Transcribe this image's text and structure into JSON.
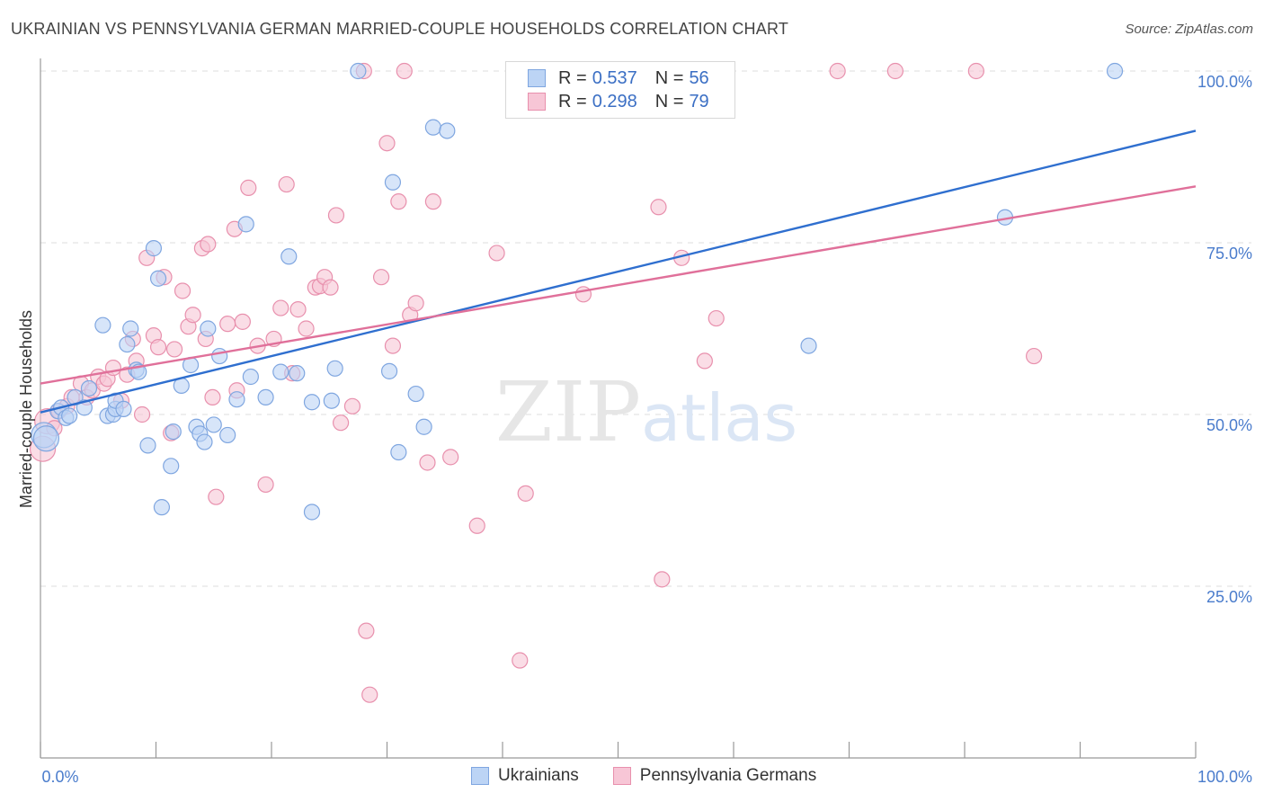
{
  "title": "UKRAINIAN VS PENNSYLVANIA GERMAN MARRIED-COUPLE HOUSEHOLDS CORRELATION CHART",
  "source": "Source: ZipAtlas.com",
  "watermark": {
    "zip": "ZIP",
    "atlas": "atlas"
  },
  "legend": {
    "rows": [
      {
        "r_label": "R =",
        "r": "0.537",
        "n_label": "N =",
        "n": "56"
      },
      {
        "r_label": "R =",
        "r": "0.298",
        "n_label": "N =",
        "n": "79"
      }
    ]
  },
  "colors": {
    "blue_fill": "#bcd4f5",
    "blue_stroke": "#7fa6e0",
    "blue_line": "#2f6fcf",
    "pink_fill": "#f7c6d6",
    "pink_stroke": "#e890ad",
    "pink_line": "#e0709a",
    "tick": "#4a7ccc",
    "grid": "#dddddd"
  },
  "chart_data": {
    "type": "scatter",
    "title": "UKRAINIAN VS PENNSYLVANIA GERMAN MARRIED-COUPLE HOUSEHOLDS CORRELATION CHART",
    "xlabel": "",
    "ylabel": "Married-couple Households",
    "xlim": [
      0,
      100
    ],
    "ylim": [
      0,
      104
    ],
    "x_tick_labels": [
      "0.0%",
      "100.0%"
    ],
    "y_ticks": [
      25,
      50,
      75,
      100
    ],
    "y_tick_labels": [
      "25.0%",
      "50.0%",
      "75.0%",
      "100.0%"
    ],
    "grid": true,
    "legend_position": "top-center",
    "series": [
      {
        "name": "Ukrainians",
        "r": 0.537,
        "n": 56,
        "trend": [
          [
            0,
            50.3
          ],
          [
            100,
            91.3
          ]
        ],
        "points": [
          [
            0.3,
            47.0
          ],
          [
            0.5,
            46.5
          ],
          [
            1.5,
            50.5
          ],
          [
            1.8,
            51.0
          ],
          [
            2.2,
            49.5
          ],
          [
            2.5,
            49.8
          ],
          [
            3.0,
            52.5
          ],
          [
            4.2,
            53.8
          ],
          [
            3.8,
            51.0
          ],
          [
            5.8,
            49.8
          ],
          [
            5.4,
            63.0
          ],
          [
            6.3,
            50.0
          ],
          [
            6.5,
            50.8
          ],
          [
            6.5,
            52.0
          ],
          [
            7.2,
            50.8
          ],
          [
            7.5,
            60.2
          ],
          [
            7.8,
            62.5
          ],
          [
            8.3,
            56.5
          ],
          [
            8.5,
            56.2
          ],
          [
            9.3,
            45.5
          ],
          [
            9.8,
            74.2
          ],
          [
            10.2,
            69.8
          ],
          [
            10.5,
            36.5
          ],
          [
            11.3,
            42.5
          ],
          [
            11.5,
            47.5
          ],
          [
            12.2,
            54.2
          ],
          [
            13.0,
            57.2
          ],
          [
            13.5,
            48.2
          ],
          [
            13.8,
            47.2
          ],
          [
            14.2,
            46.0
          ],
          [
            14.5,
            62.5
          ],
          [
            15.0,
            48.5
          ],
          [
            15.5,
            58.5
          ],
          [
            16.2,
            47.0
          ],
          [
            17.0,
            52.2
          ],
          [
            17.8,
            77.7
          ],
          [
            18.2,
            55.5
          ],
          [
            19.5,
            52.5
          ],
          [
            20.8,
            56.2
          ],
          [
            21.5,
            73.0
          ],
          [
            22.2,
            56.0
          ],
          [
            23.5,
            35.8
          ],
          [
            23.5,
            51.8
          ],
          [
            25.2,
            52.0
          ],
          [
            25.5,
            56.7
          ],
          [
            27.5,
            100.0
          ],
          [
            30.2,
            56.3
          ],
          [
            30.5,
            83.8
          ],
          [
            31.0,
            44.5
          ],
          [
            32.5,
            53.0
          ],
          [
            33.2,
            48.2
          ],
          [
            34.0,
            91.8
          ],
          [
            35.2,
            91.3
          ],
          [
            66.5,
            60.0
          ],
          [
            83.5,
            78.7
          ],
          [
            93.0,
            100.0
          ]
        ]
      },
      {
        "name": "Pennsylvania Germans",
        "r": 0.298,
        "n": 79,
        "trend": [
          [
            0,
            54.5
          ],
          [
            100,
            83.2
          ]
        ],
        "points": [
          [
            0.2,
            45.0
          ],
          [
            0.6,
            49.0
          ],
          [
            1.2,
            48.0
          ],
          [
            1.6,
            50.5
          ],
          [
            2.3,
            51.2
          ],
          [
            2.7,
            52.5
          ],
          [
            3.5,
            54.5
          ],
          [
            4.0,
            52.5
          ],
          [
            4.5,
            53.5
          ],
          [
            5.0,
            55.5
          ],
          [
            5.5,
            54.5
          ],
          [
            5.8,
            55.2
          ],
          [
            6.3,
            56.8
          ],
          [
            7.0,
            52.0
          ],
          [
            7.5,
            55.8
          ],
          [
            8.0,
            61.0
          ],
          [
            8.3,
            57.8
          ],
          [
            8.8,
            50.0
          ],
          [
            9.2,
            72.8
          ],
          [
            9.8,
            61.5
          ],
          [
            10.2,
            59.8
          ],
          [
            10.7,
            70.0
          ],
          [
            11.3,
            47.3
          ],
          [
            11.6,
            59.5
          ],
          [
            12.3,
            68.0
          ],
          [
            12.8,
            62.8
          ],
          [
            13.2,
            64.5
          ],
          [
            14.0,
            74.2
          ],
          [
            14.5,
            74.8
          ],
          [
            14.9,
            52.5
          ],
          [
            15.2,
            38.0
          ],
          [
            16.2,
            63.2
          ],
          [
            16.8,
            77.0
          ],
          [
            17.0,
            53.5
          ],
          [
            17.5,
            63.5
          ],
          [
            18.0,
            83.0
          ],
          [
            18.8,
            60.0
          ],
          [
            19.5,
            39.8
          ],
          [
            20.2,
            61.0
          ],
          [
            20.8,
            65.5
          ],
          [
            21.3,
            83.5
          ],
          [
            21.8,
            56.0
          ],
          [
            22.3,
            65.3
          ],
          [
            23.0,
            62.5
          ],
          [
            23.8,
            68.5
          ],
          [
            24.2,
            68.7
          ],
          [
            24.6,
            70.0
          ],
          [
            25.1,
            68.5
          ],
          [
            25.6,
            79.0
          ],
          [
            26.0,
            48.8
          ],
          [
            27.0,
            51.2
          ],
          [
            28.0,
            100.0
          ],
          [
            28.2,
            18.5
          ],
          [
            28.5,
            9.2
          ],
          [
            29.5,
            70.0
          ],
          [
            30.0,
            89.5
          ],
          [
            30.5,
            60.0
          ],
          [
            31.0,
            81.0
          ],
          [
            31.5,
            100.0
          ],
          [
            32.0,
            64.5
          ],
          [
            32.5,
            66.2
          ],
          [
            33.5,
            43.0
          ],
          [
            34.0,
            81.0
          ],
          [
            35.5,
            43.8
          ],
          [
            37.8,
            33.8
          ],
          [
            39.5,
            73.5
          ],
          [
            41.5,
            14.2
          ],
          [
            42.0,
            38.5
          ],
          [
            47.0,
            67.5
          ],
          [
            53.5,
            80.2
          ],
          [
            53.8,
            26.0
          ],
          [
            55.5,
            72.8
          ],
          [
            57.5,
            57.8
          ],
          [
            58.5,
            64.0
          ],
          [
            69.0,
            100.0
          ],
          [
            74.0,
            100.0
          ],
          [
            81.0,
            100.0
          ],
          [
            86.0,
            58.5
          ],
          [
            14.3,
            61.0
          ]
        ]
      }
    ]
  }
}
